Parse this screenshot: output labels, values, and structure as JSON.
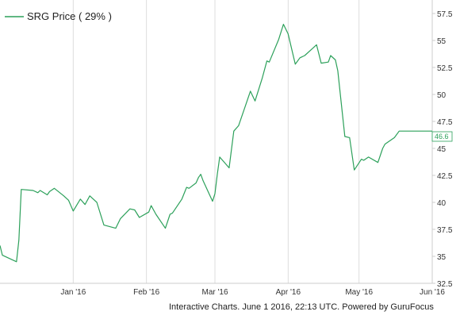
{
  "chart_data": {
    "type": "line",
    "title": "",
    "xlabel": "",
    "ylabel": "",
    "legend": {
      "label": "SRG Price ( 29% )",
      "placement": "top-left"
    },
    "ylim": [
      32.5,
      58.75
    ],
    "y_ticks": [
      "57.5",
      "55",
      "52.5",
      "50",
      "47.5",
      "45",
      "42.5",
      "40",
      "37.5",
      "35",
      "32.5"
    ],
    "x_ticks": [
      {
        "label": "Jan '16",
        "date": "2016-01-01"
      },
      {
        "label": "Feb '16",
        "date": "2016-02-01"
      },
      {
        "label": "Mar '16",
        "date": "2016-03-01"
      },
      {
        "label": "Apr '16",
        "date": "2016-04-01"
      },
      {
        "label": "May '16",
        "date": "2016-05-01"
      },
      {
        "label": "Jun '16",
        "date": "2016-06-01"
      }
    ],
    "x_range": [
      "2015-12-01",
      "2016-06-01"
    ],
    "grid": {
      "vertical": true,
      "horizontal": false
    },
    "last_value_label": "46.6",
    "colors": {
      "line": "#2ca05a",
      "grid": "#dddddd",
      "axis": "#cccccc"
    },
    "series": [
      {
        "name": "SRG Price",
        "x": [
          "2015-12-01",
          "2015-12-02",
          "2015-12-08",
          "2015-12-09",
          "2015-12-10",
          "2015-12-15",
          "2015-12-17",
          "2015-12-18",
          "2015-12-21",
          "2015-12-22",
          "2015-12-24",
          "2015-12-28",
          "2015-12-30",
          "2016-01-01",
          "2016-01-04",
          "2016-01-06",
          "2016-01-08",
          "2016-01-11",
          "2016-01-14",
          "2016-01-19",
          "2016-01-21",
          "2016-01-25",
          "2016-01-27",
          "2016-01-29",
          "2016-02-02",
          "2016-02-03",
          "2016-02-05",
          "2016-02-09",
          "2016-02-11",
          "2016-02-12",
          "2016-02-16",
          "2016-02-18",
          "2016-02-19",
          "2016-02-22",
          "2016-02-23",
          "2016-02-24",
          "2016-02-25",
          "2016-02-29",
          "2016-03-01",
          "2016-03-02",
          "2016-03-03",
          "2016-03-07",
          "2016-03-09",
          "2016-03-11",
          "2016-03-14",
          "2016-03-16",
          "2016-03-18",
          "2016-03-21",
          "2016-03-23",
          "2016-03-24",
          "2016-03-28",
          "2016-03-30",
          "2016-04-01",
          "2016-04-04",
          "2016-04-06",
          "2016-04-08",
          "2016-04-11",
          "2016-04-13",
          "2016-04-15",
          "2016-04-18",
          "2016-04-19",
          "2016-04-21",
          "2016-04-22",
          "2016-04-25",
          "2016-04-27",
          "2016-04-29",
          "2016-05-02",
          "2016-05-03",
          "2016-05-05",
          "2016-05-09",
          "2016-05-11",
          "2016-05-12",
          "2016-05-16",
          "2016-05-18",
          "2016-05-20",
          "2016-05-23",
          "2016-05-25",
          "2016-05-27",
          "2016-05-31",
          "2016-06-01"
        ],
        "y": [
          36.0,
          35.1,
          34.5,
          36.5,
          41.2,
          41.1,
          40.9,
          41.1,
          40.7,
          41.0,
          41.3,
          40.6,
          40.2,
          39.2,
          40.3,
          39.8,
          40.6,
          40.0,
          37.9,
          37.6,
          38.5,
          39.4,
          39.3,
          38.6,
          39.1,
          39.7,
          38.9,
          37.6,
          38.9,
          39.0,
          40.3,
          41.4,
          41.3,
          41.8,
          42.3,
          42.6,
          42.0,
          40.1,
          40.8,
          42.6,
          44.2,
          43.2,
          46.6,
          47.1,
          49.0,
          50.3,
          49.4,
          51.5,
          53.1,
          53.0,
          55.1,
          56.5,
          55.6,
          52.8,
          53.4,
          53.6,
          54.2,
          54.6,
          52.9,
          53.0,
          53.6,
          53.2,
          52.2,
          46.1,
          46.0,
          43.0,
          44.0,
          43.9,
          44.2,
          43.7,
          45.0,
          45.4,
          46.0,
          46.6,
          46.6,
          46.6,
          46.6,
          46.6,
          46.6,
          46.6
        ]
      }
    ]
  },
  "footer": {
    "credit": "Interactive Charts. June 1 2016, 22:13 UTC. Powered by GuruFocus"
  }
}
